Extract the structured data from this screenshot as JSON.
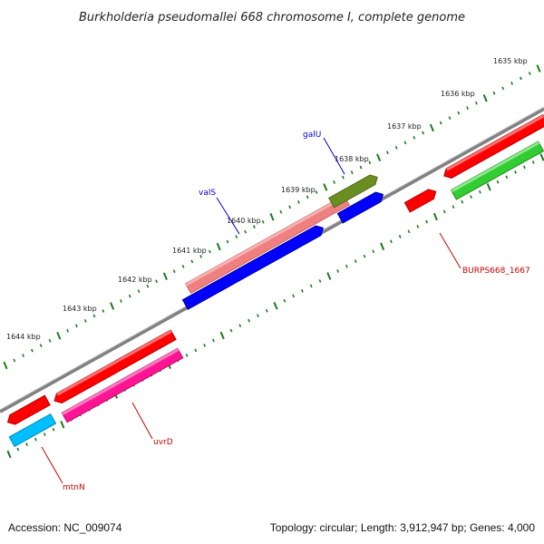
{
  "title": "Burkholderia pseudomallei 668 chromosome I, complete genome",
  "accession": "Accession: NC_009074",
  "topology": "Topology: circular; Length: 3,912,947 bp; Genes: 4,000",
  "ticks": [
    "1635 kbp",
    "1636 kbp",
    "1637 kbp",
    "1638 kbp",
    "1639 kbp",
    "1640 kbp",
    "1641 kbp",
    "1642 kbp",
    "1643 kbp",
    "1644 kbp"
  ],
  "genes": [
    {
      "name": "galU",
      "color": "#0000cc"
    },
    {
      "name": "valS",
      "color": "#0000cc"
    },
    {
      "name": "BURPS668_1667",
      "color": "#cc0000"
    },
    {
      "name": "uvrD",
      "color": "#cc0000"
    },
    {
      "name": "mtnN",
      "color": "#cc0000"
    }
  ],
  "colors": {
    "backbone": "#808080",
    "forward_red": "#ff0000",
    "pink": "#ff1493",
    "salmon": "#f08080",
    "olive": "#6b8e23",
    "blue": "#0000ff",
    "green": "#32cd32",
    "cyan": "#00bfff",
    "tick": "#1a7a1a"
  }
}
